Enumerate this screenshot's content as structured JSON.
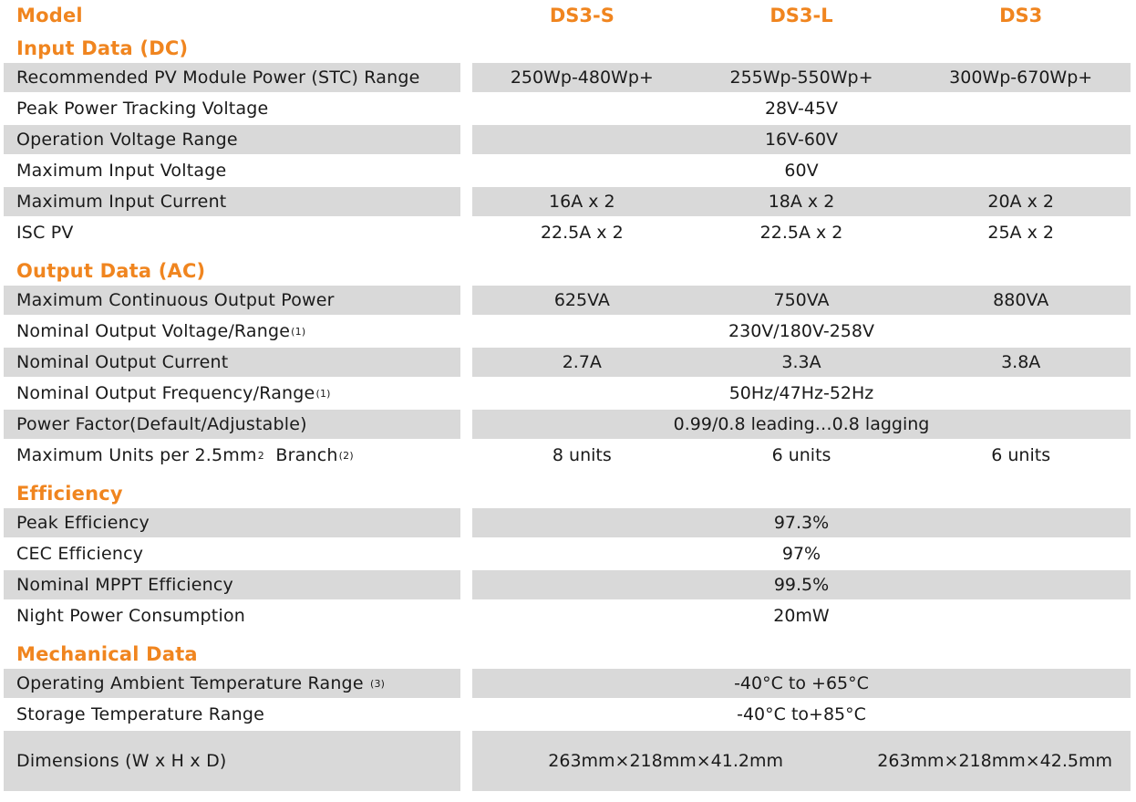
{
  "header": {
    "label": "Model",
    "models": [
      "DS3-S",
      "DS3-L",
      "DS3"
    ]
  },
  "colors": {
    "accent": "#f0851f",
    "shade": "#d9d9d9"
  },
  "sections": [
    {
      "title": "Input Data (DC)",
      "rows": [
        {
          "label": [
            {
              "t": "Recommended PV Module Power (STC) Range"
            }
          ],
          "values": [
            "250Wp-480Wp+",
            "255Wp-550Wp+",
            "300Wp-670Wp+"
          ]
        },
        {
          "label": [
            {
              "t": "Peak Power Tracking Voltage"
            }
          ],
          "values": [
            "28V-45V"
          ]
        },
        {
          "label": [
            {
              "t": "Operation Voltage Range"
            }
          ],
          "values": [
            "16V-60V"
          ]
        },
        {
          "label": [
            {
              "t": "Maximum Input Voltage"
            }
          ],
          "values": [
            "60V"
          ]
        },
        {
          "label": [
            {
              "t": "Maximum Input Current"
            }
          ],
          "values": [
            "16A x 2",
            "18A x 2",
            "20A x 2"
          ]
        },
        {
          "label": [
            {
              "t": "ISC PV"
            }
          ],
          "values": [
            "22.5A x 2",
            "22.5A x 2",
            "25A x 2"
          ]
        }
      ]
    },
    {
      "title": "Output Data (AC)",
      "rows": [
        {
          "label": [
            {
              "t": "Maximum Continuous Output Power"
            }
          ],
          "values": [
            "625VA",
            "750VA",
            "880VA"
          ]
        },
        {
          "label": [
            {
              "t": "Nominal Output Voltage/Range"
            },
            {
              "t": "(1)",
              "sup": true
            }
          ],
          "values": [
            "230V/180V-258V"
          ]
        },
        {
          "label": [
            {
              "t": "Nominal Output Current"
            }
          ],
          "values": [
            "2.7A",
            "3.3A",
            "3.8A"
          ]
        },
        {
          "label": [
            {
              "t": "Nominal Output Frequency/Range"
            },
            {
              "t": "(1)",
              "sup": true
            }
          ],
          "values": [
            "50Hz/47Hz-52Hz"
          ]
        },
        {
          "label": [
            {
              "t": "Power Factor(Default/Adjustable)"
            }
          ],
          "values": [
            "0.99/0.8 leading…0.8 lagging"
          ]
        },
        {
          "label": [
            {
              "t": "Maximum Units per 2.5mm"
            },
            {
              "t": "2",
              "sup": true
            },
            {
              "t": "  Branch"
            },
            {
              "t": "(2)",
              "sup": true
            }
          ],
          "values": [
            "8 units",
            "6 units",
            "6 units"
          ]
        }
      ]
    },
    {
      "title": "Efficiency",
      "rows": [
        {
          "label": [
            {
              "t": "Peak Efficiency"
            }
          ],
          "values": [
            "97.3%"
          ]
        },
        {
          "label": [
            {
              "t": "CEC Efficiency"
            }
          ],
          "values": [
            "97%"
          ]
        },
        {
          "label": [
            {
              "t": "Nominal MPPT Efficiency"
            }
          ],
          "values": [
            "99.5%"
          ]
        },
        {
          "label": [
            {
              "t": "Night Power Consumption"
            }
          ],
          "values": [
            "20mW"
          ]
        }
      ]
    },
    {
      "title": "Mechanical Data",
      "rows": [
        {
          "label": [
            {
              "t": "Operating Ambient Temperature Range "
            },
            {
              "t": "(3)",
              "sup": true
            }
          ],
          "values": [
            "-40°C to +65°C"
          ]
        },
        {
          "label": [
            {
              "t": "Storage Temperature Range"
            }
          ],
          "values": [
            "-40°C to+85°C"
          ]
        },
        {
          "label": [
            {
              "t": "Dimensions (W x H x D)"
            }
          ],
          "values": [
            "263mm×218mm×41.2mm",
            "263mm×218mm×42.5mm"
          ],
          "spans": [
            2,
            1
          ],
          "tall": true
        }
      ]
    }
  ]
}
